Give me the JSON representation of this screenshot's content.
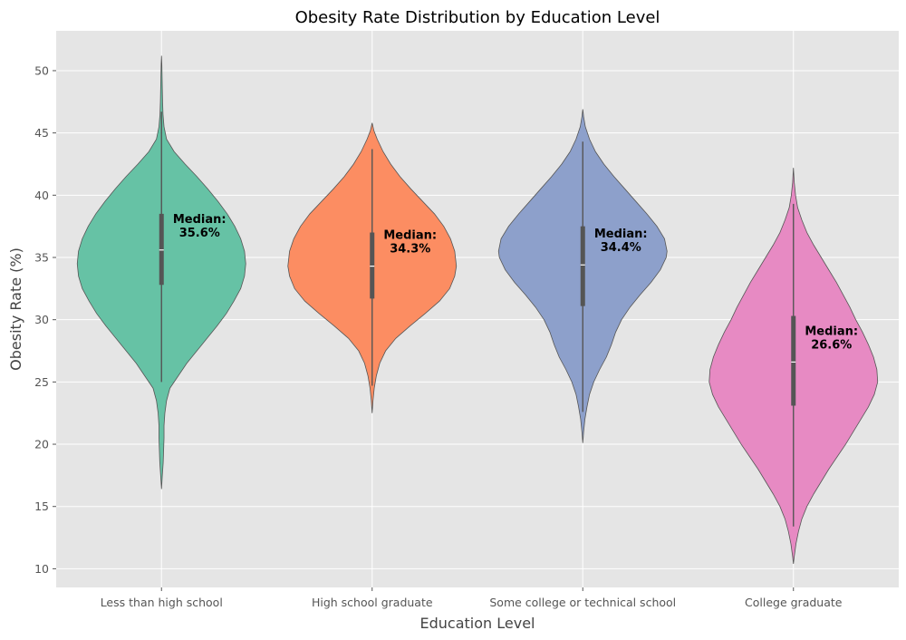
{
  "chart_data": {
    "type": "violin",
    "title": "Obesity Rate Distribution by Education Level",
    "xlabel": "Education Level",
    "ylabel": "Obesity Rate (%)",
    "ylim": [
      8.5,
      53.2
    ],
    "yticks": [
      10,
      15,
      20,
      25,
      30,
      35,
      40,
      45,
      50
    ],
    "grid": true,
    "legend": "none",
    "annotation_prefix": "Median:",
    "categories": [
      {
        "name": "Less than high school",
        "color": "#66c2a5",
        "median": 35.6,
        "median_label": "35.6%",
        "q1": 32.8,
        "q3": 38.5,
        "whisker_low": 25.0,
        "whisker_high": 46.7,
        "kde_min": 16.4,
        "kde_max": 51.2,
        "profile": [
          [
            16.4,
            0.0
          ],
          [
            17.5,
            0.01
          ],
          [
            18.5,
            0.02
          ],
          [
            19.5,
            0.025
          ],
          [
            20.5,
            0.03
          ],
          [
            21.5,
            0.03
          ],
          [
            22.5,
            0.04
          ],
          [
            23.5,
            0.06
          ],
          [
            24.5,
            0.1
          ],
          [
            25.5,
            0.2
          ],
          [
            26.5,
            0.3
          ],
          [
            27.5,
            0.42
          ],
          [
            28.5,
            0.54
          ],
          [
            29.5,
            0.66
          ],
          [
            30.5,
            0.77
          ],
          [
            31.5,
            0.86
          ],
          [
            32.5,
            0.94
          ],
          [
            33.5,
            0.985
          ],
          [
            34.5,
            1.0
          ],
          [
            35.5,
            0.985
          ],
          [
            36.5,
            0.94
          ],
          [
            37.5,
            0.87
          ],
          [
            38.5,
            0.78
          ],
          [
            39.5,
            0.67
          ],
          [
            40.5,
            0.55
          ],
          [
            41.5,
            0.42
          ],
          [
            42.5,
            0.28
          ],
          [
            43.5,
            0.15
          ],
          [
            44.5,
            0.06
          ],
          [
            45.5,
            0.03
          ],
          [
            46.5,
            0.018
          ],
          [
            47.5,
            0.013
          ],
          [
            48.5,
            0.01
          ],
          [
            49.5,
            0.007
          ],
          [
            50.5,
            0.004
          ],
          [
            51.2,
            0.0
          ]
        ]
      },
      {
        "name": "High school graduate",
        "color": "#fc8d62",
        "median": 34.3,
        "median_label": "34.3%",
        "q1": 31.7,
        "q3": 37.0,
        "whisker_low": 24.7,
        "whisker_high": 43.7,
        "kde_min": 22.5,
        "kde_max": 45.8,
        "profile": [
          [
            22.5,
            0.0
          ],
          [
            23.5,
            0.01
          ],
          [
            24.5,
            0.025
          ],
          [
            25.5,
            0.05
          ],
          [
            26.5,
            0.09
          ],
          [
            27.5,
            0.16
          ],
          [
            28.5,
            0.28
          ],
          [
            29.5,
            0.45
          ],
          [
            30.5,
            0.63
          ],
          [
            31.5,
            0.8
          ],
          [
            32.5,
            0.92
          ],
          [
            33.5,
            0.98
          ],
          [
            34.3,
            1.0
          ],
          [
            35.5,
            0.98
          ],
          [
            36.5,
            0.93
          ],
          [
            37.5,
            0.85
          ],
          [
            38.5,
            0.74
          ],
          [
            39.5,
            0.6
          ],
          [
            40.5,
            0.46
          ],
          [
            41.5,
            0.33
          ],
          [
            42.5,
            0.22
          ],
          [
            43.5,
            0.13
          ],
          [
            44.5,
            0.06
          ],
          [
            45.2,
            0.02
          ],
          [
            45.8,
            0.0
          ]
        ]
      },
      {
        "name": "Some college or technical school",
        "color": "#8da0cb",
        "median": 34.4,
        "median_label": "34.4%",
        "q1": 31.1,
        "q3": 37.5,
        "whisker_low": 22.6,
        "whisker_high": 44.3,
        "kde_min": 20.1,
        "kde_max": 46.9,
        "profile": [
          [
            20.1,
            0.0
          ],
          [
            21.0,
            0.01
          ],
          [
            22.0,
            0.025
          ],
          [
            23.0,
            0.05
          ],
          [
            24.0,
            0.08
          ],
          [
            25.0,
            0.13
          ],
          [
            26.0,
            0.2
          ],
          [
            27.0,
            0.28
          ],
          [
            28.0,
            0.34
          ],
          [
            29.0,
            0.39
          ],
          [
            30.0,
            0.46
          ],
          [
            31.0,
            0.56
          ],
          [
            32.0,
            0.68
          ],
          [
            33.0,
            0.81
          ],
          [
            34.0,
            0.92
          ],
          [
            35.0,
            0.99
          ],
          [
            35.5,
            1.0
          ],
          [
            36.5,
            0.97
          ],
          [
            37.5,
            0.88
          ],
          [
            38.5,
            0.76
          ],
          [
            39.5,
            0.63
          ],
          [
            40.5,
            0.5
          ],
          [
            41.5,
            0.37
          ],
          [
            42.5,
            0.25
          ],
          [
            43.5,
            0.15
          ],
          [
            44.5,
            0.08
          ],
          [
            45.5,
            0.03
          ],
          [
            46.3,
            0.01
          ],
          [
            46.9,
            0.0
          ]
        ]
      },
      {
        "name": "College graduate",
        "color": "#e78ac3",
        "median": 26.6,
        "median_label": "26.6%",
        "q1": 23.1,
        "q3": 30.3,
        "whisker_low": 13.4,
        "whisker_high": 39.3,
        "kde_min": 10.4,
        "kde_max": 42.2,
        "profile": [
          [
            10.4,
            0.0
          ],
          [
            11.0,
            0.01
          ],
          [
            12.0,
            0.03
          ],
          [
            13.0,
            0.06
          ],
          [
            14.0,
            0.1
          ],
          [
            15.0,
            0.16
          ],
          [
            16.0,
            0.24
          ],
          [
            17.0,
            0.33
          ],
          [
            18.0,
            0.42
          ],
          [
            19.0,
            0.52
          ],
          [
            20.0,
            0.62
          ],
          [
            21.0,
            0.71
          ],
          [
            22.0,
            0.8
          ],
          [
            23.0,
            0.89
          ],
          [
            24.0,
            0.96
          ],
          [
            25.0,
            1.0
          ],
          [
            26.0,
            0.99
          ],
          [
            27.0,
            0.95
          ],
          [
            28.0,
            0.89
          ],
          [
            29.0,
            0.82
          ],
          [
            30.0,
            0.74
          ],
          [
            31.0,
            0.67
          ],
          [
            32.0,
            0.59
          ],
          [
            33.0,
            0.51
          ],
          [
            34.0,
            0.42
          ],
          [
            35.0,
            0.33
          ],
          [
            36.0,
            0.24
          ],
          [
            37.0,
            0.16
          ],
          [
            38.0,
            0.1
          ],
          [
            39.0,
            0.05
          ],
          [
            40.0,
            0.025
          ],
          [
            41.0,
            0.01
          ],
          [
            42.2,
            0.0
          ]
        ]
      }
    ]
  }
}
